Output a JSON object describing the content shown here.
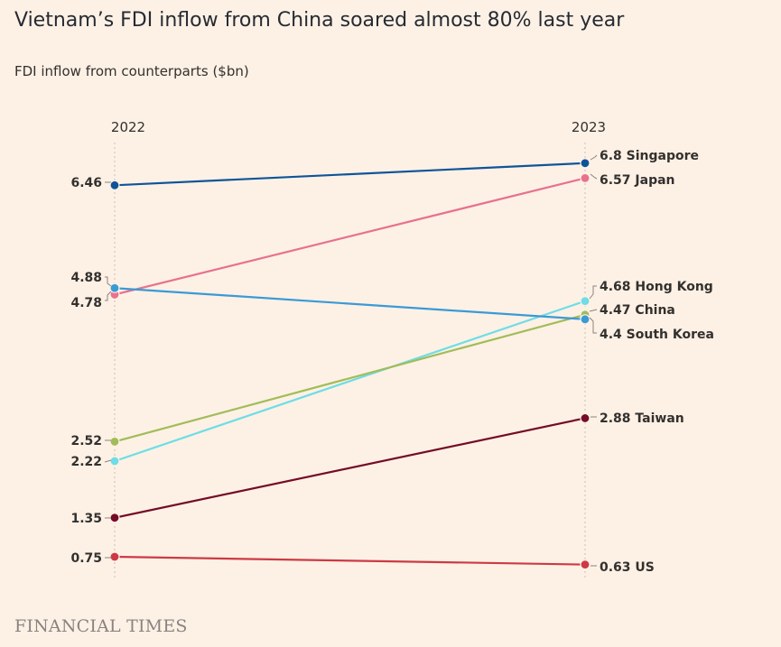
{
  "title": "Vietnam’s FDI inflow from China soared almost 80% last year",
  "subtitle": "FDI inflow from counterparts ($bn)",
  "source": "FINANCIAL TIMES",
  "chart_data": {
    "type": "line",
    "x": [
      "2022",
      "2023"
    ],
    "series": [
      {
        "name": "Singapore",
        "values": [
          6.46,
          6.8
        ],
        "color": "#0f5499",
        "start_label": "6.46",
        "end_label": "6.8 Singapore"
      },
      {
        "name": "Japan",
        "values": [
          4.78,
          6.57
        ],
        "color": "#e8718d",
        "start_label": "4.78",
        "end_label": "6.57 Japan"
      },
      {
        "name": "Hong Kong",
        "values": [
          2.22,
          4.68
        ],
        "color": "#6fdde6",
        "start_label": "2.22",
        "end_label": "4.68 Hong Kong"
      },
      {
        "name": "China",
        "values": [
          2.52,
          4.47
        ],
        "color": "#a2bc5a",
        "start_label": "2.52",
        "end_label": "4.47 China"
      },
      {
        "name": "South Korea",
        "values": [
          4.88,
          4.4
        ],
        "color": "#3a9ad6",
        "start_label": "4.88",
        "end_label": "4.4 South Korea"
      },
      {
        "name": "Taiwan",
        "values": [
          1.35,
          2.88
        ],
        "color": "#750b27",
        "start_label": "1.35",
        "end_label": "2.88 Taiwan"
      },
      {
        "name": "US",
        "values": [
          0.75,
          0.63
        ],
        "color": "#cc3a45",
        "start_label": "0.75",
        "end_label": "0.63 US"
      }
    ]
  }
}
